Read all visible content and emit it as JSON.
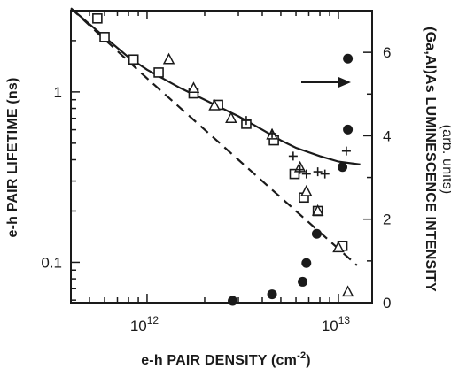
{
  "chart_data": {
    "type": "scatter",
    "x_axis": {
      "label": "e-h PAIR DENSITY (cm",
      "label_exponent": "-2",
      "label_close": ")",
      "scale": "log",
      "range": [
        400000000000.0,
        15000000000000.0
      ],
      "ticks": [
        {
          "value": 1000000000000.0,
          "base": "10",
          "exp": "12"
        },
        {
          "value": 10000000000000.0,
          "base": "10",
          "exp": "13"
        }
      ]
    },
    "y_axis_left": {
      "label": "e-h PAIR LIFETIME (ns)",
      "scale": "log",
      "range": [
        0.058,
        3.0
      ],
      "ticks": [
        {
          "value": 0.1,
          "label": "0.1"
        },
        {
          "value": 1,
          "label": "1"
        }
      ]
    },
    "y_axis_right": {
      "label": "(Ga,Al)As LUMINESCENCE INTENSITY",
      "label_units": "(arb. units)",
      "scale": "linear",
      "range": [
        0,
        7.0
      ],
      "ticks": [
        {
          "value": 0,
          "label": "0"
        },
        {
          "value": 2,
          "label": "2"
        },
        {
          "value": 4,
          "label": "4"
        },
        {
          "value": 6,
          "label": "6"
        }
      ]
    },
    "series": [
      {
        "marker": "open-square",
        "axis": "left",
        "points": [
          [
            550000000000.0,
            2.7
          ],
          [
            600000000000.0,
            2.1
          ],
          [
            850000000000.0,
            1.55
          ],
          [
            1150000000000.0,
            1.3
          ],
          [
            1750000000000.0,
            0.98
          ],
          [
            2350000000000.0,
            0.84
          ],
          [
            3300000000000.0,
            0.65
          ],
          [
            4600000000000.0,
            0.52
          ],
          [
            5900000000000.0,
            0.33
          ],
          [
            6600000000000.0,
            0.24
          ],
          [
            7800000000000.0,
            0.2
          ],
          [
            10500000000000.0,
            0.125
          ]
        ]
      },
      {
        "marker": "open-triangle",
        "axis": "left",
        "points": [
          [
            1300000000000.0,
            1.55
          ],
          [
            1750000000000.0,
            1.05
          ],
          [
            2250000000000.0,
            0.83
          ],
          [
            2750000000000.0,
            0.7
          ],
          [
            4500000000000.0,
            0.56
          ],
          [
            6300000000000.0,
            0.36
          ],
          [
            6800000000000.0,
            0.26
          ],
          [
            7800000000000.0,
            0.2
          ],
          [
            10000000000000.0,
            0.122
          ],
          [
            11200000000000.0,
            0.067
          ]
        ]
      },
      {
        "marker": "plus",
        "axis": "left",
        "points": [
          [
            3300000000000.0,
            0.68
          ],
          [
            4500000000000.0,
            0.57
          ],
          [
            5800000000000.0,
            0.42
          ],
          [
            6300000000000.0,
            0.35
          ],
          [
            6800000000000.0,
            0.33
          ],
          [
            7800000000000.0,
            0.34
          ],
          [
            8500000000000.0,
            0.33
          ],
          [
            11000000000000.0,
            0.45
          ]
        ]
      },
      {
        "marker": "filled-circle",
        "axis": "right",
        "points": [
          [
            2800000000000.0,
            0.0
          ],
          [
            4500000000000.0,
            0.2
          ],
          [
            6500000000000.0,
            0.5
          ],
          [
            6800000000000.0,
            0.95
          ],
          [
            7700000000000.0,
            1.65
          ],
          [
            10500000000000.0,
            3.25
          ],
          [
            11200000000000.0,
            4.15
          ],
          [
            11200000000000.0,
            5.85
          ]
        ]
      }
    ],
    "curves": [
      {
        "style": "solid",
        "axis": "left",
        "points": [
          [
            400000000000.0,
            3.1
          ],
          [
            600000000000.0,
            2.1
          ],
          [
            800000000000.0,
            1.6
          ],
          [
            1000000000000.0,
            1.35
          ],
          [
            1500000000000.0,
            1.05
          ],
          [
            2000000000000.0,
            0.9
          ],
          [
            3000000000000.0,
            0.72
          ],
          [
            4000000000000.0,
            0.6
          ],
          [
            5000000000000.0,
            0.52
          ],
          [
            6000000000000.0,
            0.47
          ],
          [
            8000000000000.0,
            0.42
          ],
          [
            10000000000000.0,
            0.39
          ],
          [
            13000000000000.0,
            0.375
          ]
        ]
      },
      {
        "style": "dashed",
        "axis": "left",
        "points": [
          [
            400000000000.0,
            3.1
          ],
          [
            1000000000000.0,
            1.2
          ],
          [
            3000000000000.0,
            0.4
          ],
          [
            10000000000000.0,
            0.12
          ],
          [
            12500000000000.0,
            0.096
          ]
        ]
      }
    ],
    "annotations": [
      {
        "type": "arrow",
        "direction": "right",
        "meaning": "filled circles refer to right axis"
      }
    ],
    "grid": false,
    "legend": "none"
  }
}
